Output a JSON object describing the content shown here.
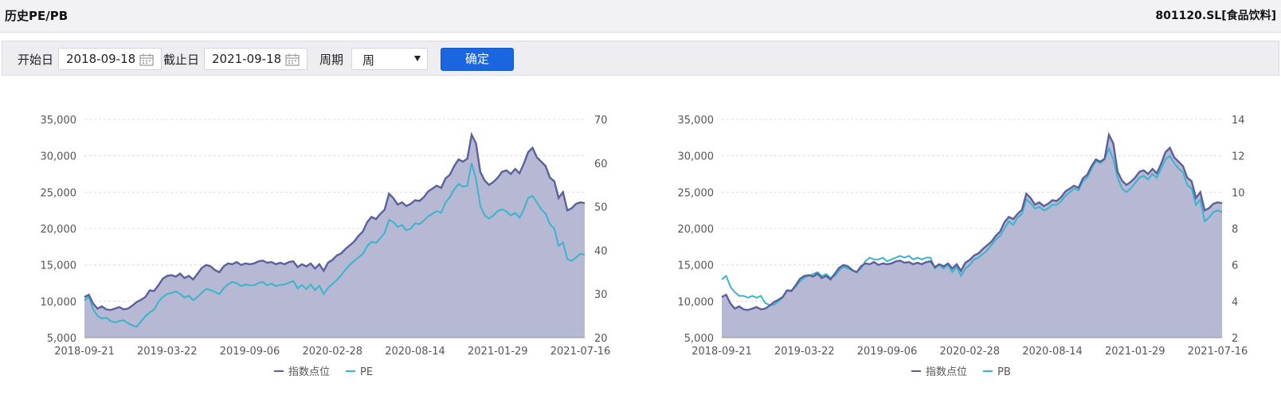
{
  "header": {
    "title": "历史PE/PB",
    "code": "801120.SL[食品饮料]"
  },
  "toolbar": {
    "start_label": "开始日",
    "start_value": "2018-09-18",
    "end_label": "截止日",
    "end_value": "2021-09-18",
    "period_label": "周期",
    "period_value": "周",
    "confirm_label": "确定",
    "calendar_icon": "calendar-icon"
  },
  "colors": {
    "index": "#5b5f9c",
    "index_fill": "#b7b9d4",
    "ratio": "#3bb3cc",
    "grid": "#dcdcdc",
    "button": "#1a66e0"
  },
  "chart_data": [
    {
      "type": "area",
      "x_ticks": [
        "2018-09-21",
        "2019-03-22",
        "2019-09-06",
        "2020-02-28",
        "2020-08-14",
        "2021-01-29",
        "2021-07-16"
      ],
      "left_axis": {
        "ticks": [
          "5,000",
          "10,000",
          "15,000",
          "20,000",
          "25,000",
          "30,000",
          "35,000"
        ],
        "min": 5000,
        "max": 35000
      },
      "right_axis": {
        "ticks": [
          "20",
          "30",
          "40",
          "50",
          "60",
          "70"
        ],
        "min": 20,
        "max": 70
      },
      "grid": true,
      "legend_position": "bottom-center",
      "series": [
        {
          "name": "指数点位",
          "axis": "left",
          "style": "area",
          "values": [
            10600,
            10900,
            9700,
            9000,
            9300,
            8900,
            8800,
            9000,
            9200,
            8900,
            9000,
            9400,
            9900,
            10200,
            10600,
            11500,
            11400,
            12200,
            13100,
            13500,
            13600,
            13400,
            13800,
            13200,
            13500,
            13000,
            13800,
            14600,
            15000,
            14800,
            14300,
            14000,
            14800,
            15200,
            15100,
            15400,
            15000,
            15200,
            15100,
            15200,
            15500,
            15600,
            15300,
            15400,
            15100,
            15300,
            15100,
            15400,
            15500,
            14700,
            15100,
            14800,
            15200,
            14500,
            15100,
            14200,
            15300,
            15700,
            16300,
            16600,
            17200,
            17700,
            18200,
            19000,
            19600,
            20900,
            21600,
            21300,
            22000,
            22600,
            24800,
            24200,
            23300,
            23600,
            23100,
            23400,
            23900,
            23800,
            24300,
            25100,
            25500,
            25900,
            25600,
            26900,
            27400,
            28600,
            29500,
            29200,
            29600,
            32900,
            31700,
            27800,
            26600,
            26000,
            26400,
            27000,
            27800,
            28000,
            27500,
            28200,
            27600,
            28900,
            30500,
            31100,
            29800,
            29200,
            28600,
            27000,
            26500,
            24200,
            25000,
            22500,
            22800,
            23400,
            23600,
            23500
          ]
        },
        {
          "name": "PE",
          "axis": "right",
          "style": "line",
          "values": [
            28.5,
            29.4,
            26.5,
            25.0,
            24.4,
            24.6,
            23.8,
            23.5,
            23.8,
            24.0,
            23.3,
            22.8,
            22.5,
            23.7,
            24.9,
            25.8,
            26.4,
            28.2,
            29.3,
            30.0,
            30.2,
            30.6,
            30.0,
            29.2,
            29.6,
            28.6,
            29.3,
            30.3,
            31.2,
            30.9,
            30.5,
            30.0,
            31.3,
            32.2,
            32.8,
            32.5,
            31.8,
            32.2,
            32.0,
            32.0,
            32.5,
            32.8,
            32.0,
            32.4,
            31.8,
            32.1,
            32.2,
            32.6,
            33.0,
            31.3,
            32.1,
            31.1,
            32.2,
            30.9,
            31.9,
            30.0,
            31.4,
            32.3,
            33.2,
            34.3,
            35.6,
            36.7,
            37.6,
            38.4,
            39.2,
            41.0,
            42.0,
            41.7,
            42.8,
            44.0,
            47.0,
            46.5,
            45.4,
            45.8,
            44.6,
            45.0,
            46.2,
            46.0,
            46.8,
            47.8,
            48.4,
            49.0,
            48.6,
            51.0,
            52.2,
            54.0,
            55.2,
            54.6,
            54.8,
            60.0,
            56.4,
            50.3,
            48.0,
            47.3,
            48.0,
            49.0,
            49.4,
            48.9,
            48.0,
            48.6,
            47.5,
            49.4,
            52.0,
            52.5,
            51.0,
            49.4,
            48.4,
            46.0,
            45.0,
            41.0,
            41.8,
            38.0,
            37.6,
            38.4,
            39.2,
            39.0
          ]
        }
      ]
    },
    {
      "type": "area",
      "x_ticks": [
        "2018-09-21",
        "2019-03-22",
        "2019-09-06",
        "2020-02-28",
        "2020-08-14",
        "2021-01-29",
        "2021-07-16"
      ],
      "left_axis": {
        "ticks": [
          "5,000",
          "10,000",
          "15,000",
          "20,000",
          "25,000",
          "30,000",
          "35,000"
        ],
        "min": 5000,
        "max": 35000
      },
      "right_axis": {
        "ticks": [
          "2",
          "4",
          "6",
          "8",
          "10",
          "12",
          "14"
        ],
        "min": 2,
        "max": 14
      },
      "grid": true,
      "legend_position": "bottom-center",
      "series": [
        {
          "name": "指数点位",
          "axis": "left",
          "style": "area",
          "values": [
            10600,
            10900,
            9700,
            9000,
            9300,
            8900,
            8800,
            9000,
            9200,
            8900,
            9000,
            9400,
            9900,
            10200,
            10600,
            11500,
            11400,
            12200,
            13100,
            13500,
            13600,
            13400,
            13800,
            13200,
            13500,
            13000,
            13800,
            14600,
            15000,
            14800,
            14300,
            14000,
            14800,
            15200,
            15100,
            15400,
            15000,
            15200,
            15100,
            15200,
            15500,
            15600,
            15300,
            15400,
            15100,
            15300,
            15100,
            15400,
            15500,
            14700,
            15100,
            14800,
            15200,
            14500,
            15100,
            14200,
            15300,
            15700,
            16300,
            16600,
            17200,
            17700,
            18200,
            19000,
            19600,
            20900,
            21600,
            21300,
            22000,
            22600,
            24800,
            24200,
            23300,
            23600,
            23100,
            23400,
            23900,
            23800,
            24300,
            25100,
            25500,
            25900,
            25600,
            26900,
            27400,
            28600,
            29500,
            29200,
            29600,
            32900,
            31700,
            27800,
            26600,
            26000,
            26400,
            27000,
            27800,
            28000,
            27500,
            28200,
            27600,
            28900,
            30500,
            31100,
            29800,
            29200,
            28600,
            27000,
            26500,
            24200,
            25000,
            22500,
            22800,
            23400,
            23600,
            23500
          ]
        },
        {
          "name": "PB",
          "axis": "right",
          "style": "line",
          "values": [
            5.2,
            5.4,
            4.8,
            4.5,
            4.3,
            4.3,
            4.2,
            4.3,
            4.2,
            4.3,
            3.9,
            3.8,
            3.8,
            4.0,
            4.2,
            4.6,
            4.6,
            4.8,
            5.1,
            5.3,
            5.4,
            5.5,
            5.6,
            5.4,
            5.5,
            5.3,
            5.4,
            5.7,
            5.9,
            5.8,
            5.7,
            5.6,
            5.8,
            6.2,
            6.4,
            6.3,
            6.3,
            6.4,
            6.2,
            6.3,
            6.4,
            6.5,
            6.4,
            6.5,
            6.3,
            6.4,
            6.3,
            6.4,
            6.4,
            5.8,
            6.0,
            5.8,
            6.0,
            5.6,
            5.9,
            5.4,
            5.8,
            6.0,
            6.3,
            6.4,
            6.6,
            6.8,
            7.1,
            7.4,
            7.6,
            8.0,
            8.4,
            8.2,
            8.6,
            8.8,
            9.6,
            9.4,
            9.1,
            9.2,
            9.0,
            9.1,
            9.3,
            9.3,
            9.5,
            9.8,
            10.0,
            10.2,
            10.1,
            10.6,
            10.8,
            11.3,
            11.7,
            11.6,
            11.8,
            12.4,
            11.8,
            10.8,
            10.2,
            10.0,
            10.2,
            10.5,
            10.8,
            10.9,
            10.7,
            11.0,
            10.8,
            11.3,
            11.8,
            12.0,
            11.6,
            11.3,
            11.1,
            10.4,
            10.2,
            9.3,
            9.6,
            8.4,
            8.6,
            8.9,
            9.0,
            8.9
          ]
        }
      ]
    }
  ]
}
